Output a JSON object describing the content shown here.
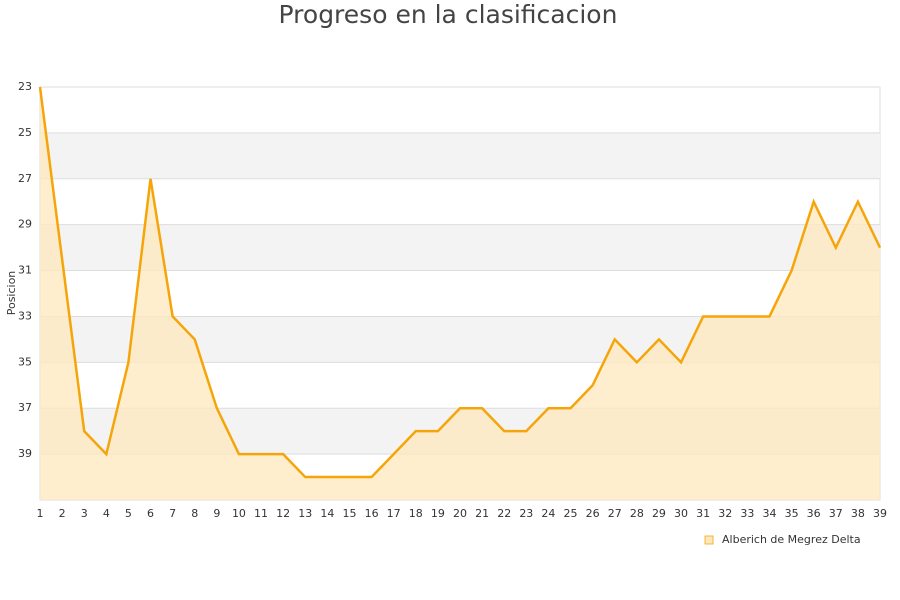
{
  "chart_data": {
    "type": "line",
    "title": "Progreso en la clasificacion",
    "y_label": "Posicion",
    "x": [
      1,
      2,
      3,
      4,
      5,
      6,
      7,
      8,
      9,
      10,
      11,
      12,
      13,
      14,
      15,
      16,
      17,
      18,
      19,
      20,
      21,
      22,
      23,
      24,
      25,
      26,
      27,
      28,
      29,
      30,
      31,
      32,
      33,
      34,
      35,
      36,
      37,
      38,
      39
    ],
    "xlim": [
      1,
      39
    ],
    "xticks": [
      1,
      2,
      3,
      4,
      5,
      6,
      7,
      8,
      9,
      10,
      11,
      12,
      13,
      14,
      15,
      16,
      17,
      18,
      19,
      20,
      21,
      22,
      23,
      24,
      25,
      26,
      27,
      28,
      29,
      30,
      31,
      32,
      33,
      34,
      35,
      36,
      37,
      38,
      39
    ],
    "ylim": [
      23,
      41
    ],
    "y_inverted": true,
    "yticks": [
      23,
      25,
      27,
      29,
      31,
      33,
      35,
      37,
      39
    ],
    "grid": true,
    "legend": "bottom-right",
    "series": [
      {
        "name": "Alberich de Megrez Delta",
        "color": "#f5a50a",
        "fill": "#ffe8bd",
        "values": [
          23,
          30.5,
          38,
          39,
          35,
          27,
          33,
          34,
          37,
          39,
          39,
          39,
          40,
          40,
          40,
          40,
          39,
          38,
          38,
          37,
          37,
          38,
          38,
          37,
          37,
          36,
          34,
          35,
          34,
          35,
          33,
          33,
          33,
          33,
          31,
          28,
          30,
          28,
          30
        ]
      }
    ]
  }
}
